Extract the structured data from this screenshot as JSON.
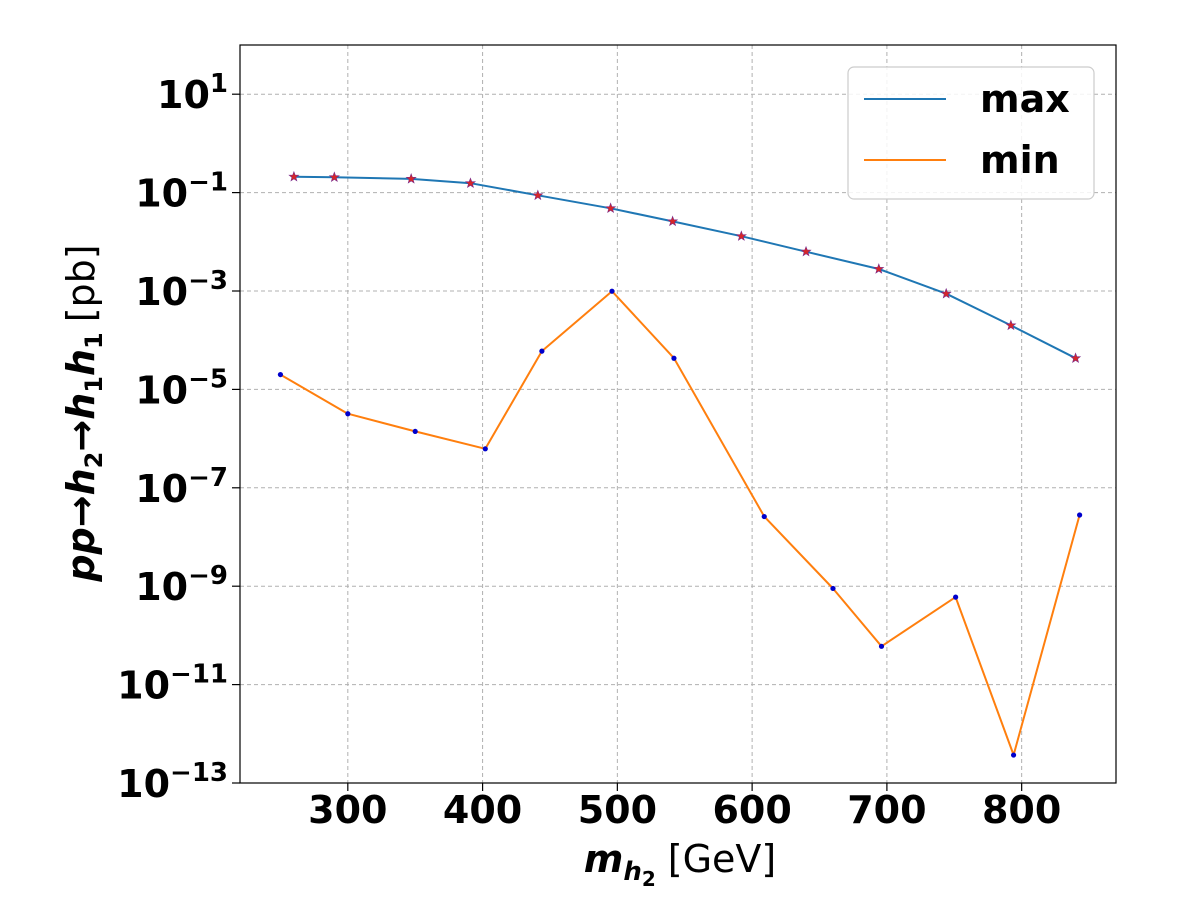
{
  "chart_data": {
    "type": "line",
    "title": "",
    "xlabel": {
      "symbol": "m",
      "sub": "h",
      "subsub": "2",
      "unit": "[GeV]"
    },
    "ylabel": {
      "parts": [
        "pp",
        "→",
        "h",
        "2",
        "→",
        "h",
        "1",
        "h",
        "1"
      ],
      "unit": "[pb]"
    },
    "xlim": [
      220,
      870
    ],
    "ylim_log10": [
      -13,
      2
    ],
    "yscale": "log",
    "grid": true,
    "legend_position": "top-right",
    "x_ticks": [
      300,
      400,
      500,
      600,
      700,
      800
    ],
    "x_tick_labels": [
      "300",
      "400",
      "500",
      "600",
      "700",
      "800"
    ],
    "y_tick_exponents": [
      1,
      -1,
      -3,
      -5,
      -7,
      -9,
      -11,
      -13
    ],
    "y_tick_labels": [
      {
        "base": "10",
        "exp": "1"
      },
      {
        "base": "10",
        "exp": "−1"
      },
      {
        "base": "10",
        "exp": "−3"
      },
      {
        "base": "10",
        "exp": "−5"
      },
      {
        "base": "10",
        "exp": "−7"
      },
      {
        "base": "10",
        "exp": "−9"
      },
      {
        "base": "10",
        "exp": "−11"
      },
      {
        "base": "10",
        "exp": "−13"
      }
    ],
    "series": [
      {
        "name": "max",
        "color": "#1f77b4",
        "marker": "star",
        "marker_color": "#d62728",
        "x": [
          260,
          290,
          347,
          391,
          441,
          495,
          541,
          592,
          640,
          694,
          744,
          792,
          840
        ],
        "y": [
          0.21,
          0.205,
          0.19,
          0.155,
          0.088,
          0.048,
          0.026,
          0.013,
          0.0063,
          0.0028,
          0.00088,
          0.0002,
          4.3e-05
        ]
      },
      {
        "name": "min",
        "color": "#ff7f0e",
        "marker": "dot",
        "marker_color": "#0000cc",
        "x": [
          250,
          300,
          350,
          402,
          444,
          496,
          542,
          609,
          660,
          696,
          751,
          794,
          843
        ],
        "y": [
          2e-05,
          3.2e-06,
          1.4e-06,
          6.2e-07,
          6e-05,
          0.00099,
          4.3e-05,
          2.6e-08,
          9e-10,
          6e-11,
          6e-10,
          3.7e-13,
          2.8e-08
        ]
      }
    ]
  }
}
